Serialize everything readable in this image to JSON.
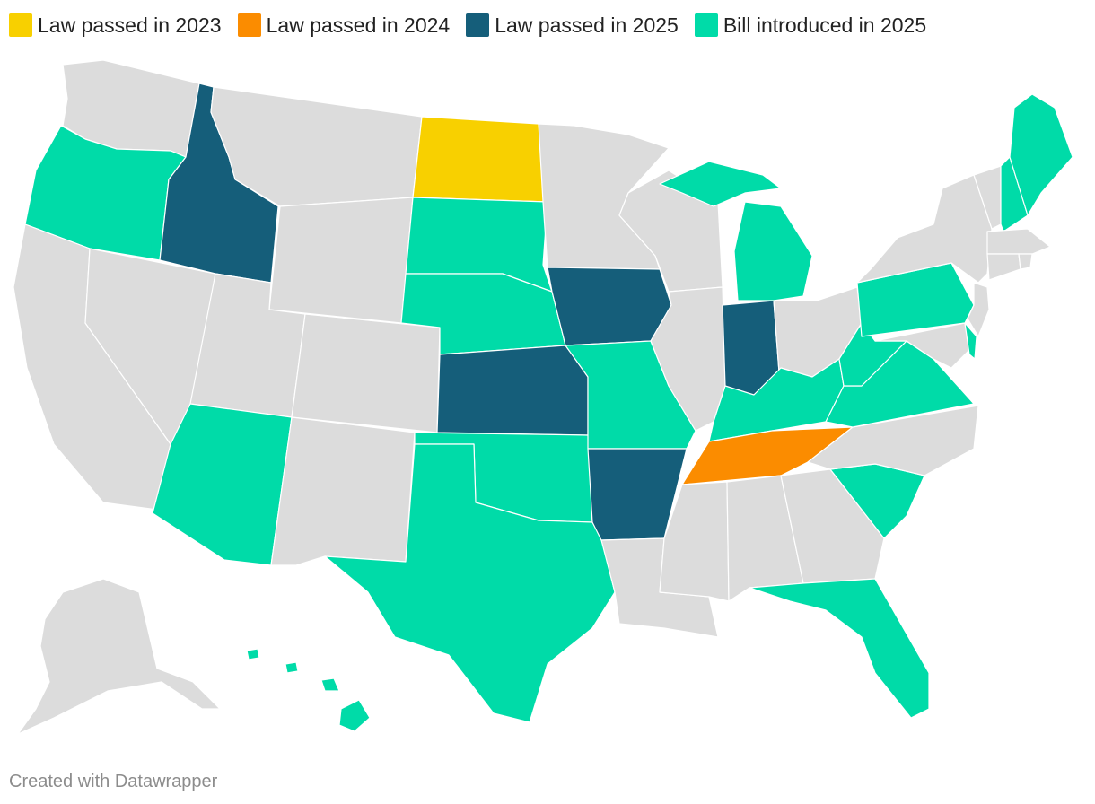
{
  "legend": [
    {
      "label": "Law passed in 2023",
      "color": "#f8d000"
    },
    {
      "label": "Law passed in 2024",
      "color": "#fb8c00"
    },
    {
      "label": "Law passed in 2025",
      "color": "#155e7a"
    },
    {
      "label": "Bill introduced in 2025",
      "color": "#00dba8"
    }
  ],
  "colors": {
    "none": "#dcdcdc",
    "law_2023": "#f8d000",
    "law_2024": "#fb8c00",
    "law_2025": "#155e7a",
    "bill_2025": "#00dba8"
  },
  "credit": "Created with Datawrapper",
  "chart_data": {
    "type": "choropleth",
    "states": {
      "North Dakota": "law_2023",
      "Tennessee": "law_2024",
      "Idaho": "law_2025",
      "Iowa": "law_2025",
      "Kansas": "law_2025",
      "Arkansas": "law_2025",
      "Indiana": "law_2025",
      "Oregon": "bill_2025",
      "Arizona": "bill_2025",
      "South Dakota": "bill_2025",
      "Nebraska": "bill_2025",
      "Oklahoma": "bill_2025",
      "Texas": "bill_2025",
      "Missouri": "bill_2025",
      "Michigan": "bill_2025",
      "Kentucky": "bill_2025",
      "West Virginia": "bill_2025",
      "Virginia": "bill_2025",
      "Pennsylvania": "bill_2025",
      "South Carolina": "bill_2025",
      "Florida": "bill_2025",
      "Maine": "bill_2025",
      "New Hampshire": "bill_2025",
      "Delaware": "bill_2025",
      "Hawaii": "bill_2025",
      "Washington": "none",
      "Montana": "none",
      "Wyoming": "none",
      "Nevada": "none",
      "California": "none",
      "Utah": "none",
      "Colorado": "none",
      "New Mexico": "none",
      "Minnesota": "none",
      "Wisconsin": "none",
      "Illinois": "none",
      "Ohio": "none",
      "Louisiana": "none",
      "Mississippi": "none",
      "Alabama": "none",
      "Georgia": "none",
      "North Carolina": "none",
      "Maryland": "none",
      "New Jersey": "none",
      "New York": "none",
      "Vermont": "none",
      "Massachusetts": "none",
      "Connecticut": "none",
      "Rhode Island": "none",
      "Alaska": "none"
    }
  }
}
